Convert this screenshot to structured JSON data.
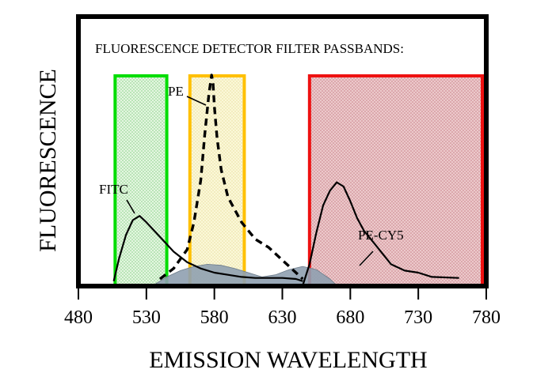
{
  "chart_data": {
    "type": "line",
    "title": "FLUORESCENCE DETECTOR FILTER PASSBANDS:",
    "xlabel": "EMISSION WAVELENGTH",
    "ylabel": "FLUORESCENCE",
    "xlim": [
      480,
      780
    ],
    "ylim": [
      0,
      1
    ],
    "grid": false,
    "x_ticks": [
      480,
      530,
      580,
      630,
      680,
      730,
      780
    ],
    "passbands": [
      {
        "id": "green",
        "range": [
          507,
          545
        ],
        "color": "#00dd00",
        "fill": "#c8ecc0"
      },
      {
        "id": "yellow",
        "range": [
          562,
          602
        ],
        "color": "#ffc000",
        "fill": "#faf6c8"
      },
      {
        "id": "red",
        "range": [
          650,
          780
        ],
        "color": "#ee1111",
        "fill": "#e2b3b6"
      }
    ],
    "series": [
      {
        "name": "FITC",
        "style": "solid",
        "x": [
          506,
          510,
          515,
          520,
          525,
          530,
          540,
          550,
          560,
          570,
          580,
          590,
          600,
          610,
          620,
          630,
          640,
          645
        ],
        "y": [
          0.02,
          0.13,
          0.24,
          0.31,
          0.33,
          0.3,
          0.23,
          0.16,
          0.11,
          0.08,
          0.06,
          0.05,
          0.04,
          0.035,
          0.035,
          0.035,
          0.03,
          0.02
        ]
      },
      {
        "name": "PE",
        "style": "dashed",
        "x": [
          540,
          550,
          560,
          565,
          570,
          573,
          576,
          578,
          579,
          580,
          582,
          585,
          590,
          600,
          610,
          620,
          630,
          640,
          645
        ],
        "y": [
          0.03,
          0.08,
          0.17,
          0.3,
          0.5,
          0.72,
          0.91,
          1.0,
          0.96,
          0.85,
          0.7,
          0.55,
          0.42,
          0.3,
          0.22,
          0.18,
          0.12,
          0.06,
          0.03
        ]
      },
      {
        "name": "PE-CY5",
        "style": "solid",
        "x": [
          645,
          650,
          655,
          660,
          665,
          670,
          675,
          680,
          685,
          690,
          700,
          710,
          720,
          730,
          740,
          760
        ],
        "y": [
          0.0,
          0.1,
          0.25,
          0.38,
          0.45,
          0.49,
          0.47,
          0.4,
          0.32,
          0.26,
          0.18,
          0.1,
          0.07,
          0.06,
          0.04,
          0.035
        ]
      }
    ],
    "overlap_region": {
      "color": "#8fa0b0",
      "x": [
        535,
        545,
        555,
        565,
        575,
        585,
        595,
        605,
        615,
        625,
        635,
        645,
        655,
        665,
        670
      ],
      "y": [
        0.0,
        0.04,
        0.07,
        0.09,
        0.1,
        0.095,
        0.08,
        0.06,
        0.04,
        0.05,
        0.075,
        0.09,
        0.075,
        0.03,
        0.0
      ]
    },
    "annotations": [
      {
        "text": "FITC",
        "series": "FITC"
      },
      {
        "text": "PE",
        "series": "PE"
      },
      {
        "text": "PE-CY5",
        "series": "PE-CY5"
      }
    ]
  }
}
